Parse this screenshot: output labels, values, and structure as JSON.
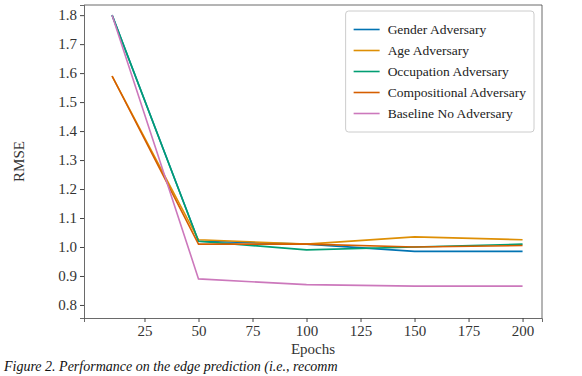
{
  "chart_data": {
    "type": "line",
    "x_label": "Epochs",
    "y_label": "RMSE",
    "caption": "Figure 2. Performance on the edge prediction (i.e., recomm",
    "x": [
      10,
      50,
      100,
      150,
      200
    ],
    "series": [
      {
        "name": "Gender Adversary",
        "color": "#0173b2",
        "values": [
          1.8,
          1.02,
          1.01,
          0.985,
          0.985
        ]
      },
      {
        "name": "Age Adversary",
        "color": "#de8f05",
        "values": [
          1.59,
          1.025,
          1.01,
          1.035,
          1.025
        ]
      },
      {
        "name": "Occupation Adversary",
        "color": "#029e73",
        "values": [
          1.8,
          1.02,
          0.99,
          1.0,
          1.01
        ]
      },
      {
        "name": "Compositional Adversary",
        "color": "#d55e00",
        "values": [
          1.59,
          1.01,
          1.01,
          1.0,
          1.005
        ]
      },
      {
        "name": "Baseline No Adversary",
        "color": "#cc78bc",
        "values": [
          1.8,
          0.89,
          0.87,
          0.865,
          0.865
        ]
      }
    ],
    "xlim": [
      -3,
      209
    ],
    "xticks": [
      25,
      50,
      75,
      100,
      125,
      150,
      175,
      200
    ],
    "ylim": [
      0.755,
      1.835
    ],
    "yticks": [
      0.8,
      0.9,
      {
        "value": 1,
        "label": "1.0"
      },
      1.1,
      1.2,
      1.3,
      1.4,
      1.5,
      1.6,
      1.7,
      1.8
    ],
    "grid": false,
    "legend": "upper right"
  }
}
